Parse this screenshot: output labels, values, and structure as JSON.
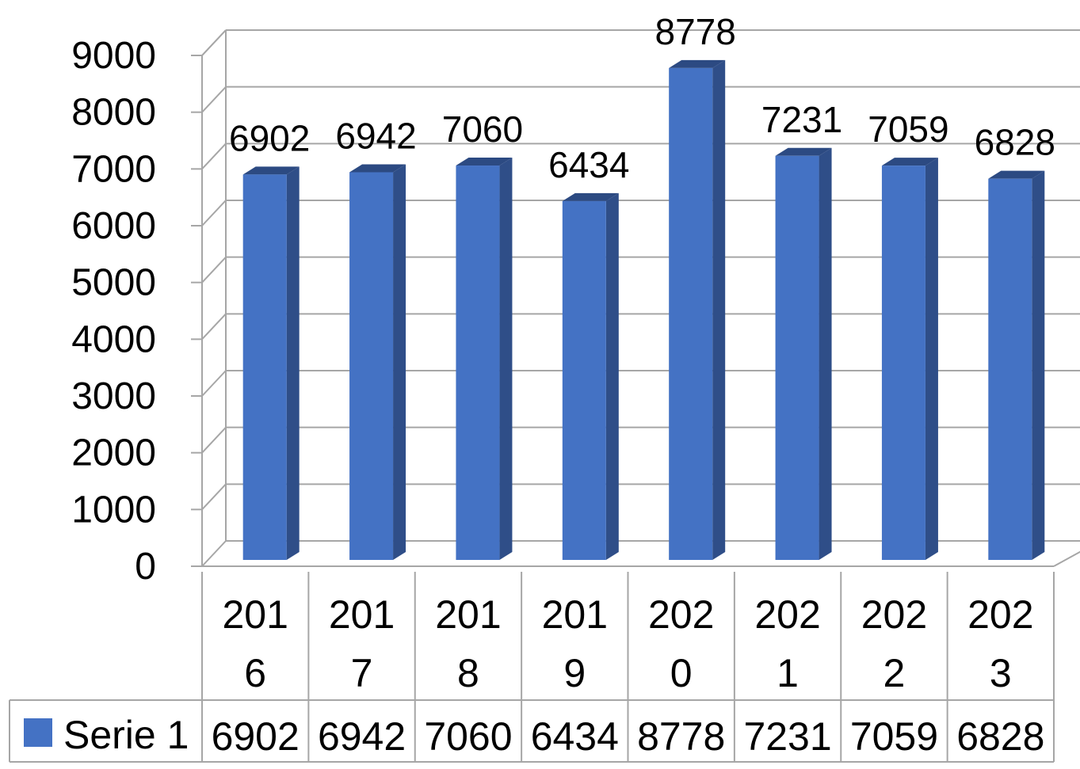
{
  "chart_data": {
    "type": "bar",
    "categories": [
      "2016",
      "2017",
      "2018",
      "2019",
      "2020",
      "2021",
      "2022",
      "2023"
    ],
    "series": [
      {
        "name": "Serie 1",
        "values": [
          6902,
          6942,
          7060,
          6434,
          8778,
          7231,
          7059,
          6828
        ]
      }
    ],
    "ylim": [
      0,
      9000
    ],
    "yticks": [
      0,
      1000,
      2000,
      3000,
      4000,
      5000,
      6000,
      7000,
      8000,
      9000
    ],
    "grid": true,
    "legend": "data-table-left",
    "data_table": true,
    "style": "3d-column"
  },
  "colors": {
    "bar_front": "#4472C4",
    "bar_side": "#2F4E88",
    "bar_top": "#2C4A82",
    "grid": "#A6A6A6",
    "text": "#000000"
  }
}
